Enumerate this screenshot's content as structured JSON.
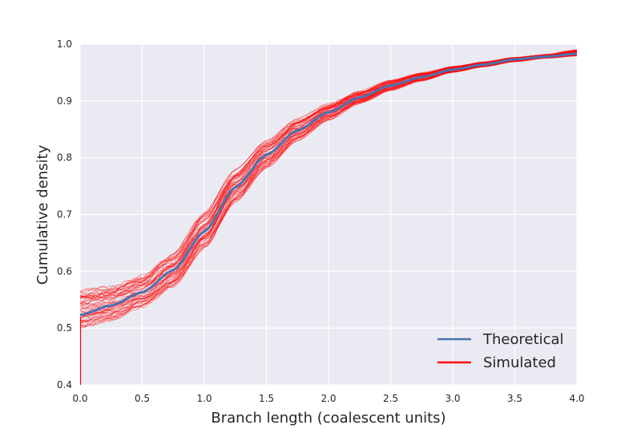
{
  "chart_data": {
    "type": "line",
    "title": "",
    "xlabel": "Branch length (coalescent units)",
    "ylabel": "Cumulative density",
    "xlim": [
      0.0,
      4.0
    ],
    "ylim": [
      0.4,
      1.0
    ],
    "x_ticks": [
      "0.0",
      "0.5",
      "1.0",
      "1.5",
      "2.0",
      "2.5",
      "3.0",
      "3.5",
      "4.0"
    ],
    "y_ticks": [
      "0.4",
      "0.5",
      "0.6",
      "0.7",
      "0.8",
      "0.9",
      "1.0"
    ],
    "grid": true,
    "legend_position": "bottom-right",
    "series": [
      {
        "name": "Theoretical",
        "color": "#4c72b0",
        "x": [
          0.0,
          0.25,
          0.5,
          0.75,
          1.0,
          1.25,
          1.5,
          1.75,
          2.0,
          2.25,
          2.5,
          2.75,
          3.0,
          3.25,
          3.5,
          3.75,
          4.0
        ],
        "y": [
          0.523,
          0.54,
          0.563,
          0.602,
          0.67,
          0.748,
          0.805,
          0.848,
          0.88,
          0.906,
          0.927,
          0.942,
          0.955,
          0.964,
          0.973,
          0.978,
          0.983
        ]
      },
      {
        "name": "Simulated",
        "color": "#ff0000",
        "x": [
          0.0,
          0.25,
          0.5,
          0.75,
          1.0,
          1.25,
          1.5,
          1.75,
          2.0,
          2.25,
          2.5,
          2.75,
          3.0,
          3.25,
          3.5,
          3.75,
          4.0
        ],
        "y": [
          0.525,
          0.541,
          0.564,
          0.603,
          0.672,
          0.749,
          0.806,
          0.849,
          0.881,
          0.906,
          0.927,
          0.942,
          0.955,
          0.964,
          0.973,
          0.978,
          0.983
        ],
        "replicate_count": 50,
        "replicate_y_min": [
          0.5,
          0.513,
          0.535,
          0.572,
          0.64,
          0.722,
          0.782,
          0.83,
          0.866,
          0.895,
          0.918,
          0.935,
          0.95,
          0.96,
          0.969,
          0.975,
          0.979
        ],
        "replicate_y_max": [
          0.568,
          0.575,
          0.594,
          0.633,
          0.705,
          0.779,
          0.83,
          0.869,
          0.896,
          0.918,
          0.937,
          0.95,
          0.961,
          0.969,
          0.977,
          0.982,
          0.99
        ]
      }
    ]
  }
}
